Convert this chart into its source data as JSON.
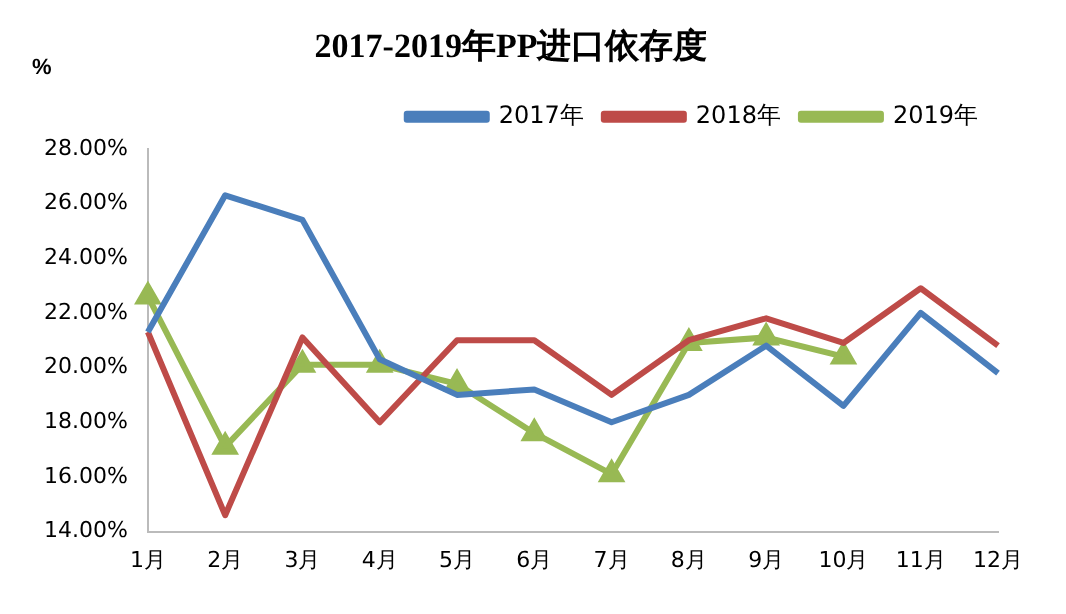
{
  "chart_data": {
    "type": "line",
    "title": "2017-2019年PP进口依存度",
    "ylabel": "%",
    "categories": [
      "1月",
      "2月",
      "3月",
      "4月",
      "5月",
      "6月",
      "7月",
      "8月",
      "9月",
      "10月",
      "11月",
      "12月"
    ],
    "series": [
      {
        "name": "2017年",
        "color": "#4a7ebb",
        "marker": "none",
        "values": [
          21.3,
          26.3,
          25.4,
          20.3,
          19.0,
          19.2,
          18.0,
          19.0,
          20.8,
          18.6,
          22.0,
          19.8
        ]
      },
      {
        "name": "2018年",
        "color": "#be4b48",
        "marker": "none",
        "values": [
          21.3,
          14.6,
          21.1,
          18.0,
          21.0,
          21.0,
          19.0,
          21.0,
          21.8,
          20.9,
          22.9,
          20.8
        ]
      },
      {
        "name": "2019年",
        "color": "#98b954",
        "marker": "triangle",
        "values": [
          22.6,
          17.1,
          20.1,
          20.1,
          19.4,
          17.6,
          16.1,
          20.9,
          21.1,
          20.4,
          null,
          null
        ]
      }
    ],
    "ylim": [
      14,
      28
    ],
    "yticks": [
      {
        "value": 14,
        "label": "14.00%"
      },
      {
        "value": 16,
        "label": "16.00%"
      },
      {
        "value": 18,
        "label": "18.00%"
      },
      {
        "value": 20,
        "label": "20.00%"
      },
      {
        "value": 22,
        "label": "22.00%"
      },
      {
        "value": 24,
        "label": "24.00%"
      },
      {
        "value": 26,
        "label": "26.00%"
      },
      {
        "value": 28,
        "label": "28.00%"
      }
    ],
    "grid": false,
    "legend": "top"
  }
}
